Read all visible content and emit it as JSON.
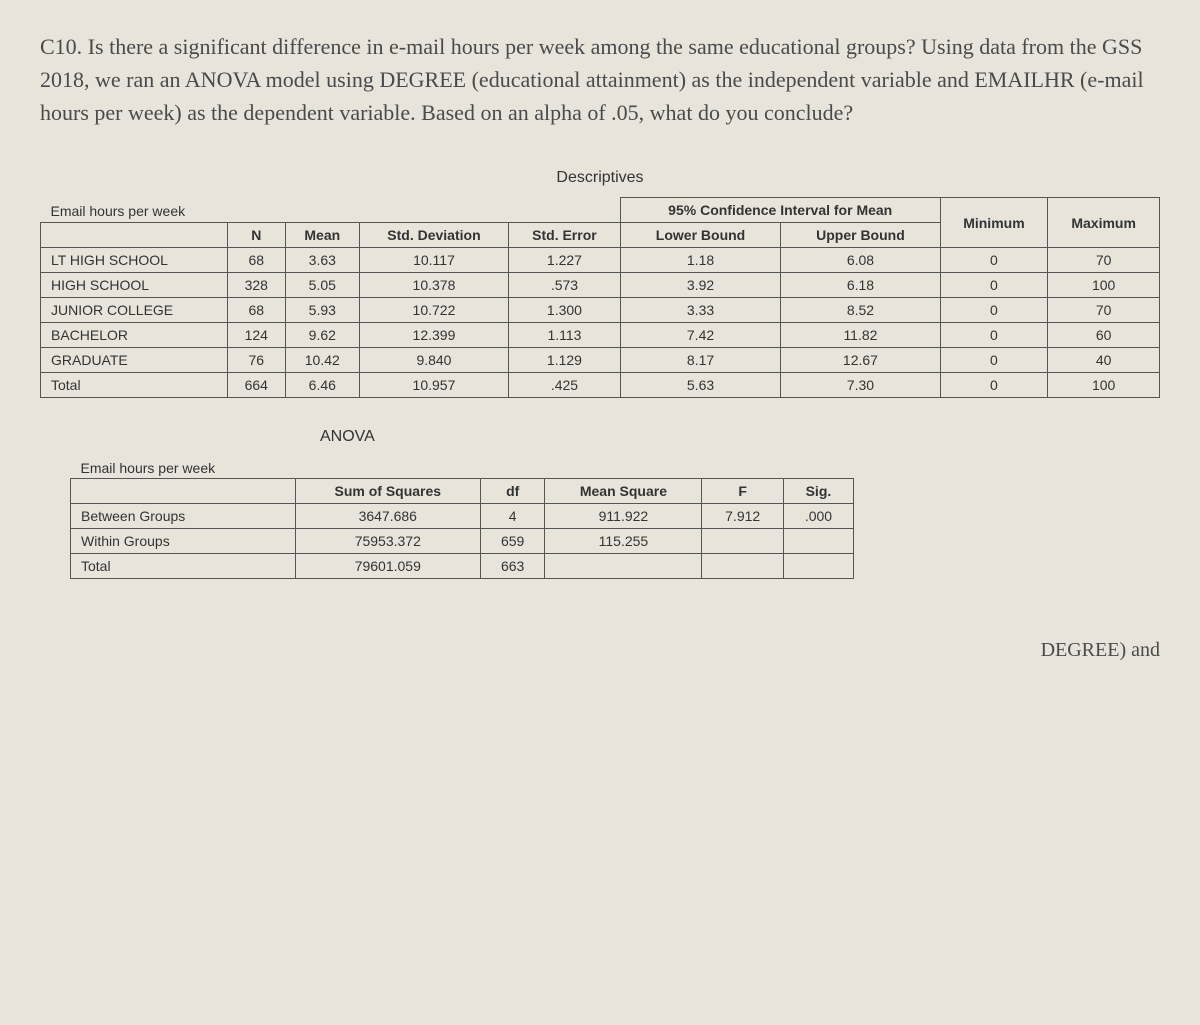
{
  "question": {
    "label": "C10.",
    "text": "Is there a significant difference in e-mail hours per week among the same educational groups? Using data from the GSS 2018, we ran an ANOVA model using DEGREE (educational attainment) as the independent variable and EMAILHR (e-mail hours per week) as the dependent variable. Based on an alpha of .05, what do you conclude?"
  },
  "descriptives": {
    "title": "Descriptives",
    "var_label": "Email hours per week",
    "ci_header": "95% Confidence Interval for Mean",
    "columns": [
      "",
      "N",
      "Mean",
      "Std. Deviation",
      "Std. Error",
      "Lower Bound",
      "Upper Bound",
      "Minimum",
      "Maximum"
    ],
    "rows": [
      {
        "label": "LT HIGH SCHOOL",
        "n": "68",
        "mean": "3.63",
        "sd": "10.117",
        "se": "1.227",
        "lb": "1.18",
        "ub": "6.08",
        "min": "0",
        "max": "70"
      },
      {
        "label": "HIGH SCHOOL",
        "n": "328",
        "mean": "5.05",
        "sd": "10.378",
        "se": ".573",
        "lb": "3.92",
        "ub": "6.18",
        "min": "0",
        "max": "100"
      },
      {
        "label": "JUNIOR COLLEGE",
        "n": "68",
        "mean": "5.93",
        "sd": "10.722",
        "se": "1.300",
        "lb": "3.33",
        "ub": "8.52",
        "min": "0",
        "max": "70"
      },
      {
        "label": "BACHELOR",
        "n": "124",
        "mean": "9.62",
        "sd": "12.399",
        "se": "1.113",
        "lb": "7.42",
        "ub": "11.82",
        "min": "0",
        "max": "60"
      },
      {
        "label": "GRADUATE",
        "n": "76",
        "mean": "10.42",
        "sd": "9.840",
        "se": "1.129",
        "lb": "8.17",
        "ub": "12.67",
        "min": "0",
        "max": "40"
      },
      {
        "label": "Total",
        "n": "664",
        "mean": "6.46",
        "sd": "10.957",
        "se": ".425",
        "lb": "5.63",
        "ub": "7.30",
        "min": "0",
        "max": "100"
      }
    ]
  },
  "anova": {
    "title": "ANOVA",
    "var_label": "Email hours per week",
    "columns": [
      "",
      "Sum of Squares",
      "df",
      "Mean Square",
      "F",
      "Sig."
    ],
    "rows": [
      {
        "label": "Between Groups",
        "ss": "3647.686",
        "df": "4",
        "ms": "911.922",
        "f": "7.912",
        "sig": ".000"
      },
      {
        "label": "Within Groups",
        "ss": "75953.372",
        "df": "659",
        "ms": "115.255",
        "f": "",
        "sig": ""
      },
      {
        "label": "Total",
        "ss": "79601.059",
        "df": "663",
        "ms": "",
        "f": "",
        "sig": ""
      }
    ]
  },
  "footer_fragment": "DEGREE) and"
}
